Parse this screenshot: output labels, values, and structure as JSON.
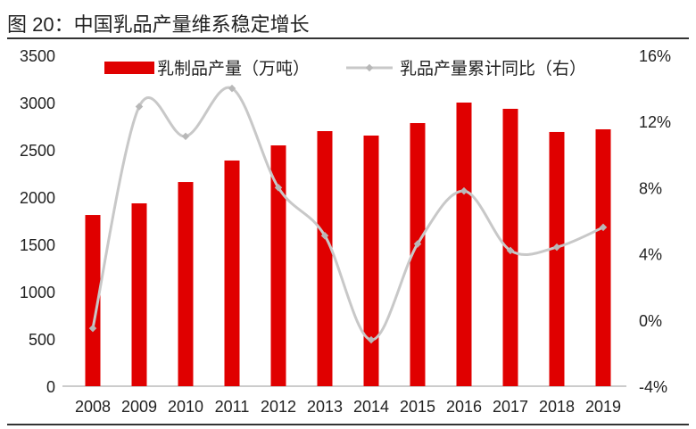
{
  "title": "图 20：中国乳品产量维系稳定增长",
  "chart_data": {
    "type": "bar+line",
    "categories": [
      "2008",
      "2009",
      "2010",
      "2011",
      "2012",
      "2013",
      "2014",
      "2015",
      "2016",
      "2017",
      "2018",
      "2019"
    ],
    "series": [
      {
        "name": "乳制品产量（万吨）",
        "type": "bar",
        "axis": "left",
        "color": "#e00000",
        "values": [
          1811,
          1934,
          2160,
          2387,
          2547,
          2698,
          2651,
          2783,
          3000,
          2934,
          2689,
          2717
        ]
      },
      {
        "name": "乳品产量累计同比（右）",
        "type": "line",
        "axis": "right",
        "color": "#c8c8c8",
        "values": [
          -0.5,
          12.9,
          11.1,
          14.0,
          8.0,
          5.1,
          -1.2,
          4.6,
          7.8,
          4.2,
          4.4,
          5.6
        ]
      }
    ],
    "left_axis": {
      "range": [
        0,
        3500
      ],
      "ticks": [
        "0",
        "500",
        "1000",
        "1500",
        "2000",
        "2500",
        "3000",
        "3500"
      ]
    },
    "right_axis": {
      "range": [
        -4,
        16
      ],
      "ticks": [
        "-4%",
        "0%",
        "4%",
        "8%",
        "12%",
        "16%"
      ]
    },
    "legend": {
      "placement": "top"
    }
  }
}
